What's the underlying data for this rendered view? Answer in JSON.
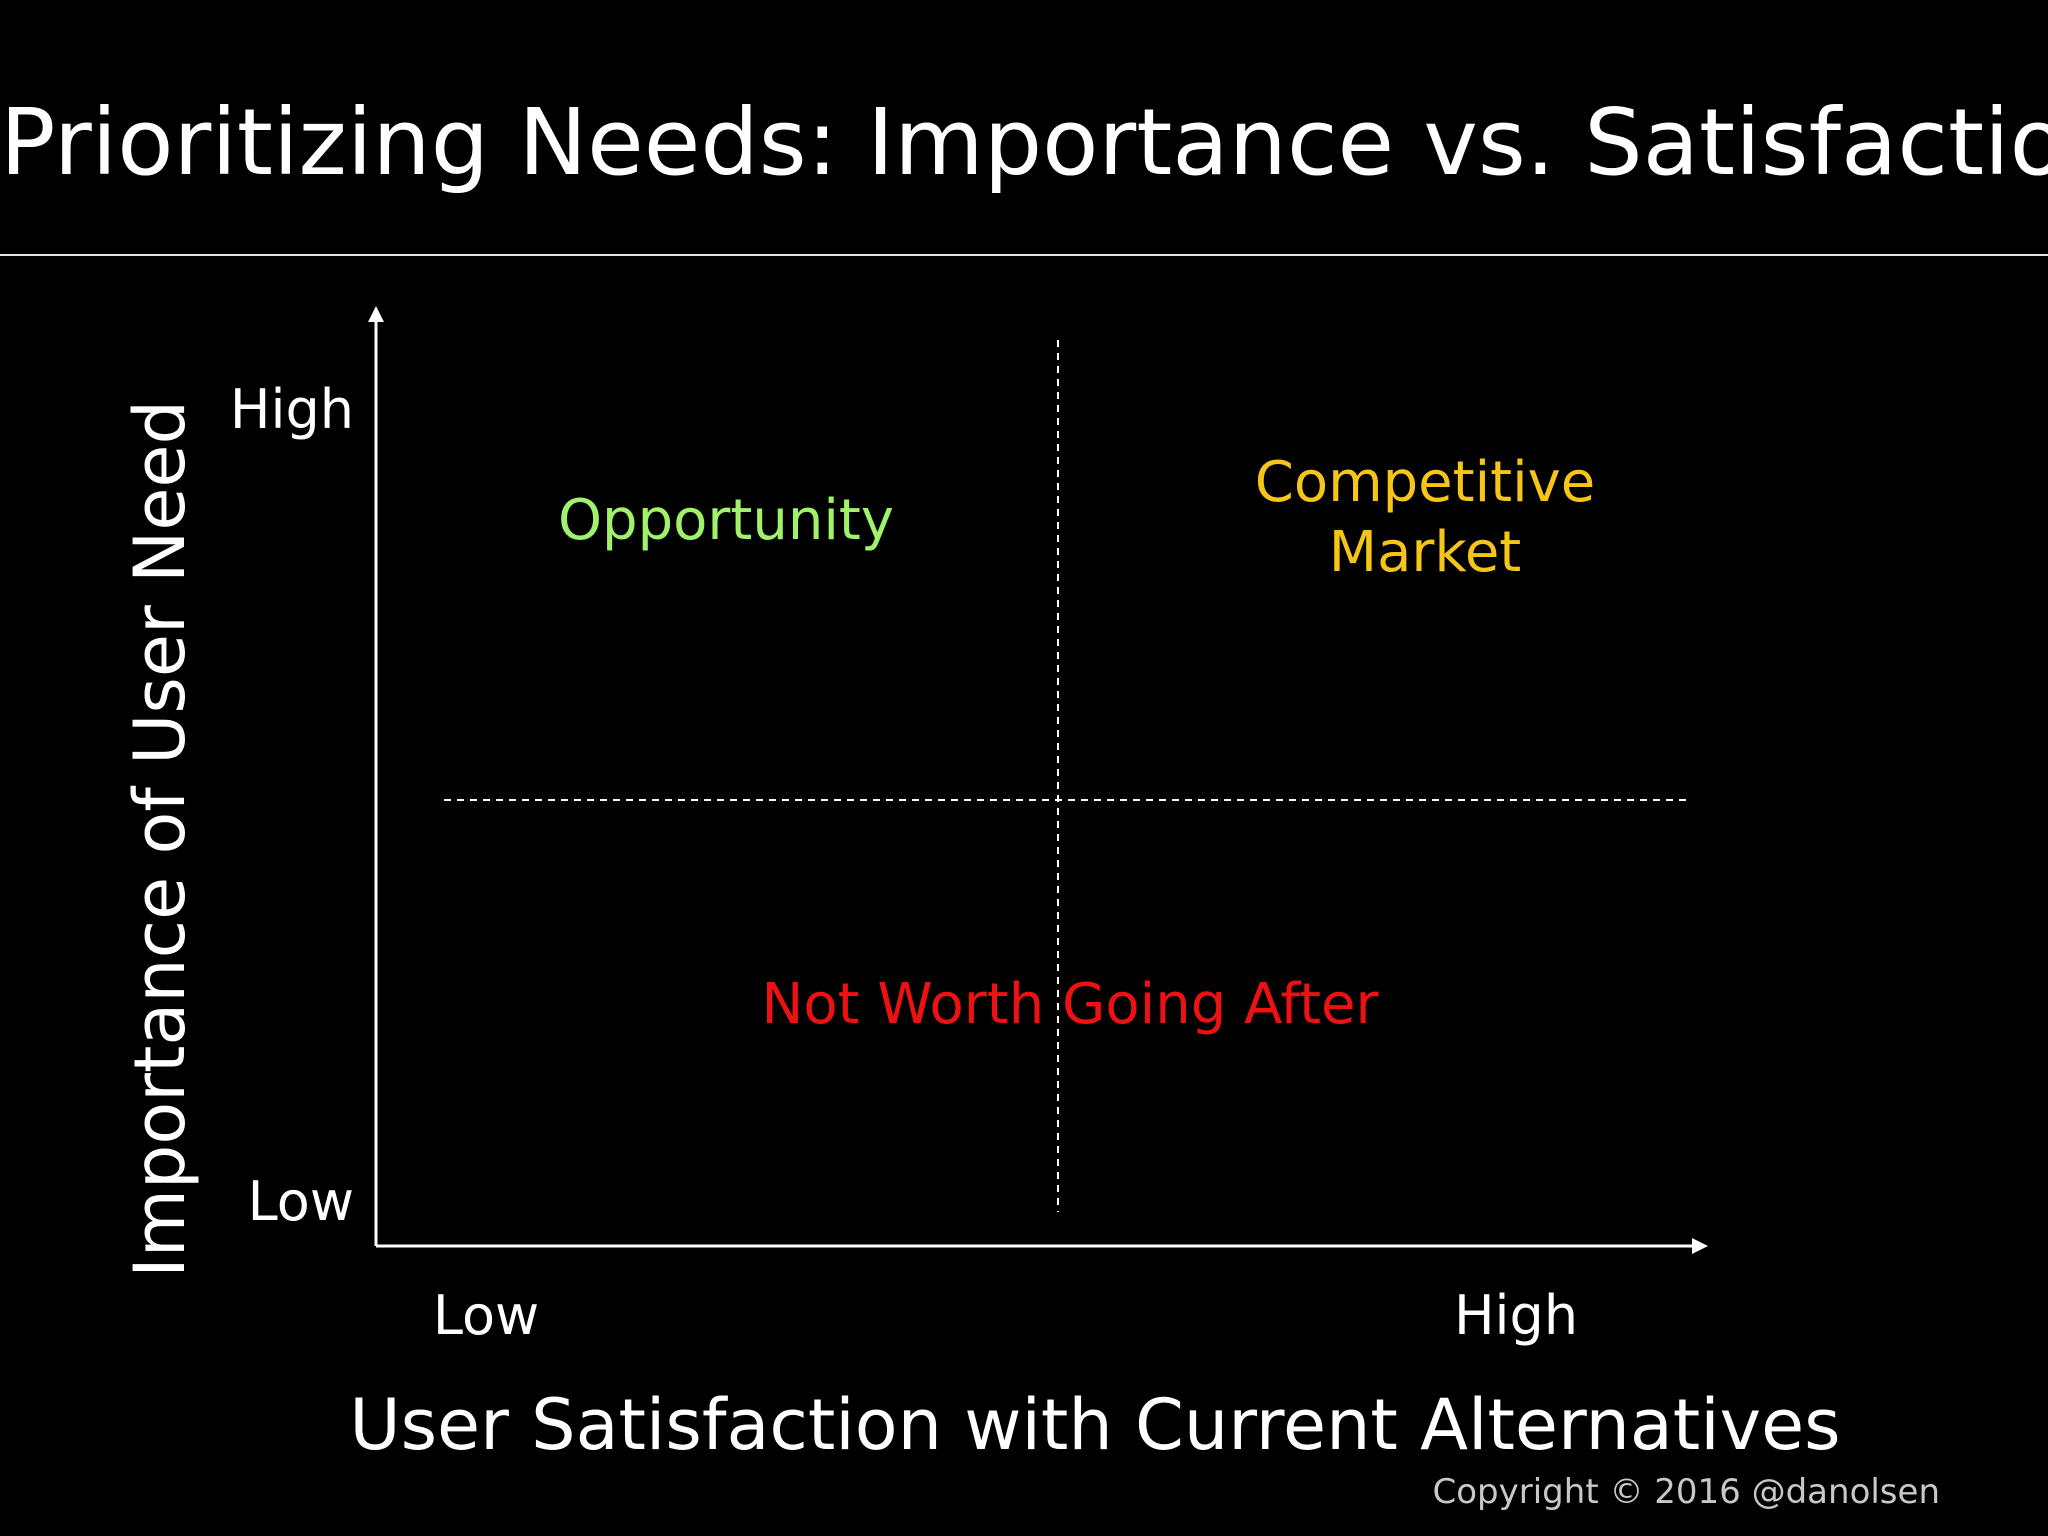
{
  "title": "Prioritizing Needs: Importance vs. Satisfaction",
  "y_axis": {
    "label": "Importance of User Need",
    "high": "High",
    "low": "Low"
  },
  "x_axis": {
    "label": "User Satisfaction with Current Alternatives",
    "low": "Low",
    "high": "High"
  },
  "quadrants": {
    "opportunity": "Opportunity",
    "competitive_line1": "Competitive",
    "competitive_line2": "Market",
    "not_worth": "Not Worth Going After"
  },
  "colors": {
    "background": "#000000",
    "text": "#ffffff",
    "opportunity": "#9ff26a",
    "competitive": "#f5c518",
    "not_worth": "#ee1111"
  },
  "copyright": "Copyright © 2016 @danolsen"
}
